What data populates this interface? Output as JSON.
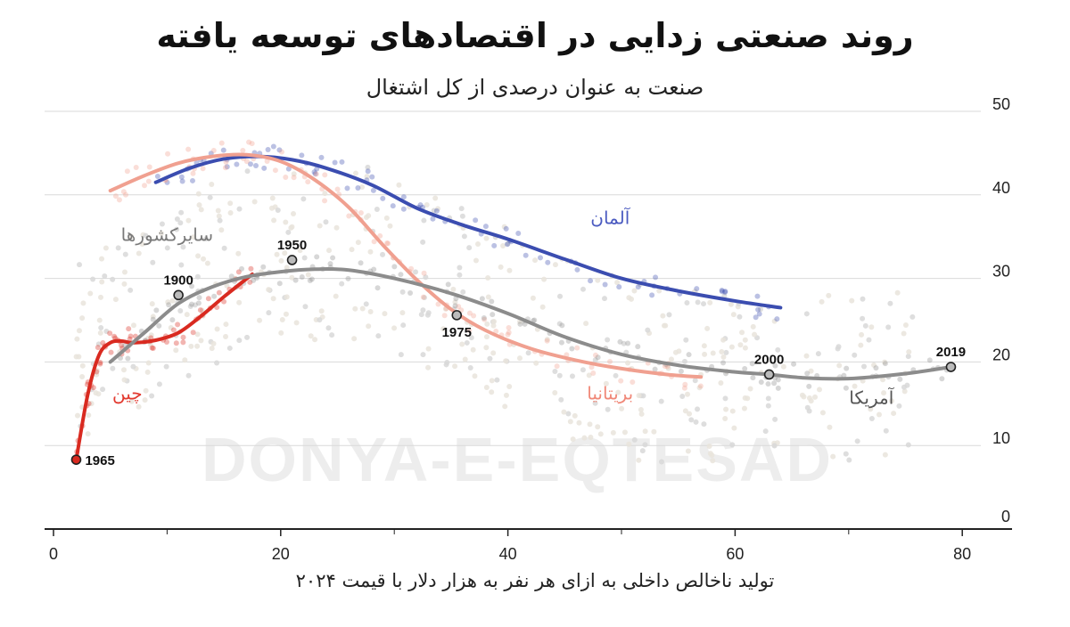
{
  "chart_data": {
    "type": "line",
    "title": "روند صنعتی زدایی در اقتصادهای توسعه یافته",
    "subtitle": "صنعت به عنوان درصدی از کل اشتغال",
    "xlabel": "تولید ناخالص داخلی به ازای هر نفر به هزار دلار با قیمت ۲۰۲۴",
    "ylabel": "",
    "xlim": [
      -1,
      85
    ],
    "ylim": [
      0,
      50
    ],
    "x_ticks": [
      0,
      20,
      40,
      60,
      80
    ],
    "y_ticks": [
      0,
      10,
      20,
      30,
      40,
      50
    ],
    "y_axis_position": "right",
    "grid": "horizontal",
    "watermark": "DONYA-E-EQTESAD",
    "series": [
      {
        "name": "آلمان",
        "color": "#3b4db0",
        "x": [
          9,
          12,
          15,
          18,
          21,
          24,
          28,
          32,
          36,
          40,
          45,
          50,
          55,
          60,
          64
        ],
        "y": [
          41.5,
          43.2,
          44.3,
          44.6,
          44.2,
          43.2,
          41.2,
          38.4,
          36.4,
          34.7,
          32.3,
          30.0,
          28.5,
          27.3,
          26.5
        ]
      },
      {
        "name": "بریتانیا",
        "color": "#f0a090",
        "x": [
          5,
          8,
          11,
          14,
          17,
          20,
          23,
          26,
          29,
          32,
          35,
          38,
          42,
          46,
          50,
          54,
          57
        ],
        "y": [
          40.5,
          42.3,
          43.8,
          44.6,
          44.8,
          44.0,
          41.8,
          38.5,
          34.0,
          29.8,
          26.3,
          23.8,
          21.6,
          20.2,
          19.2,
          18.5,
          18.2
        ]
      },
      {
        "name": "چین",
        "color": "#d92a20",
        "x": [
          2,
          3,
          4,
          5,
          6,
          7,
          9,
          11,
          13,
          15,
          17.5
        ],
        "y": [
          8.3,
          16.0,
          20.8,
          22.3,
          22.5,
          22.3,
          22.6,
          23.5,
          25.5,
          27.8,
          30.5
        ]
      },
      {
        "name": "آمریکا",
        "color": "#8c8c8c",
        "x": [
          5,
          8,
          11,
          14,
          17,
          20,
          23,
          26,
          30,
          35,
          40,
          45,
          50,
          55,
          60,
          63,
          66,
          70,
          75,
          79
        ],
        "y": [
          20.0,
          23.5,
          27.0,
          29.0,
          30.2,
          30.8,
          31.1,
          31.0,
          30.0,
          28.2,
          25.8,
          23.0,
          20.9,
          19.6,
          18.8,
          18.5,
          18.1,
          18.0,
          18.6,
          19.4
        ]
      }
    ],
    "series_labels": [
      {
        "text": "آلمان",
        "x": 49,
        "y": 36.5,
        "color": "#4a5ac0"
      },
      {
        "text": "بریتانیا",
        "x": 49,
        "y": 15.5,
        "color": "#f08878"
      },
      {
        "text": "چین",
        "x": 6.5,
        "y": 15.5,
        "color": "#e23a30"
      },
      {
        "text": "آمریکا",
        "x": 72,
        "y": 15,
        "color": "#555555"
      },
      {
        "text": "سایرکشورها",
        "x": 10,
        "y": 34.5,
        "color": "#7a7a7a"
      }
    ],
    "annotations": [
      {
        "label": "1965",
        "x": 2,
        "y": 8.3,
        "color": "#d92a20",
        "label_side": "right"
      },
      {
        "label": "1900",
        "x": 11,
        "y": 28.0,
        "color": "#bbbbbb",
        "label_side": "above"
      },
      {
        "label": "1950",
        "x": 21,
        "y": 32.2,
        "color": "#bbbbbb",
        "label_side": "above"
      },
      {
        "label": "1975",
        "x": 35.5,
        "y": 25.6,
        "color": "#bbbbbb",
        "label_side": "below"
      },
      {
        "label": "2000",
        "x": 63,
        "y": 18.5,
        "color": "#bbbbbb",
        "label_side": "above"
      },
      {
        "label": "2019",
        "x": 79,
        "y": 19.4,
        "color": "#bbbbbb",
        "label_side": "above"
      }
    ]
  }
}
